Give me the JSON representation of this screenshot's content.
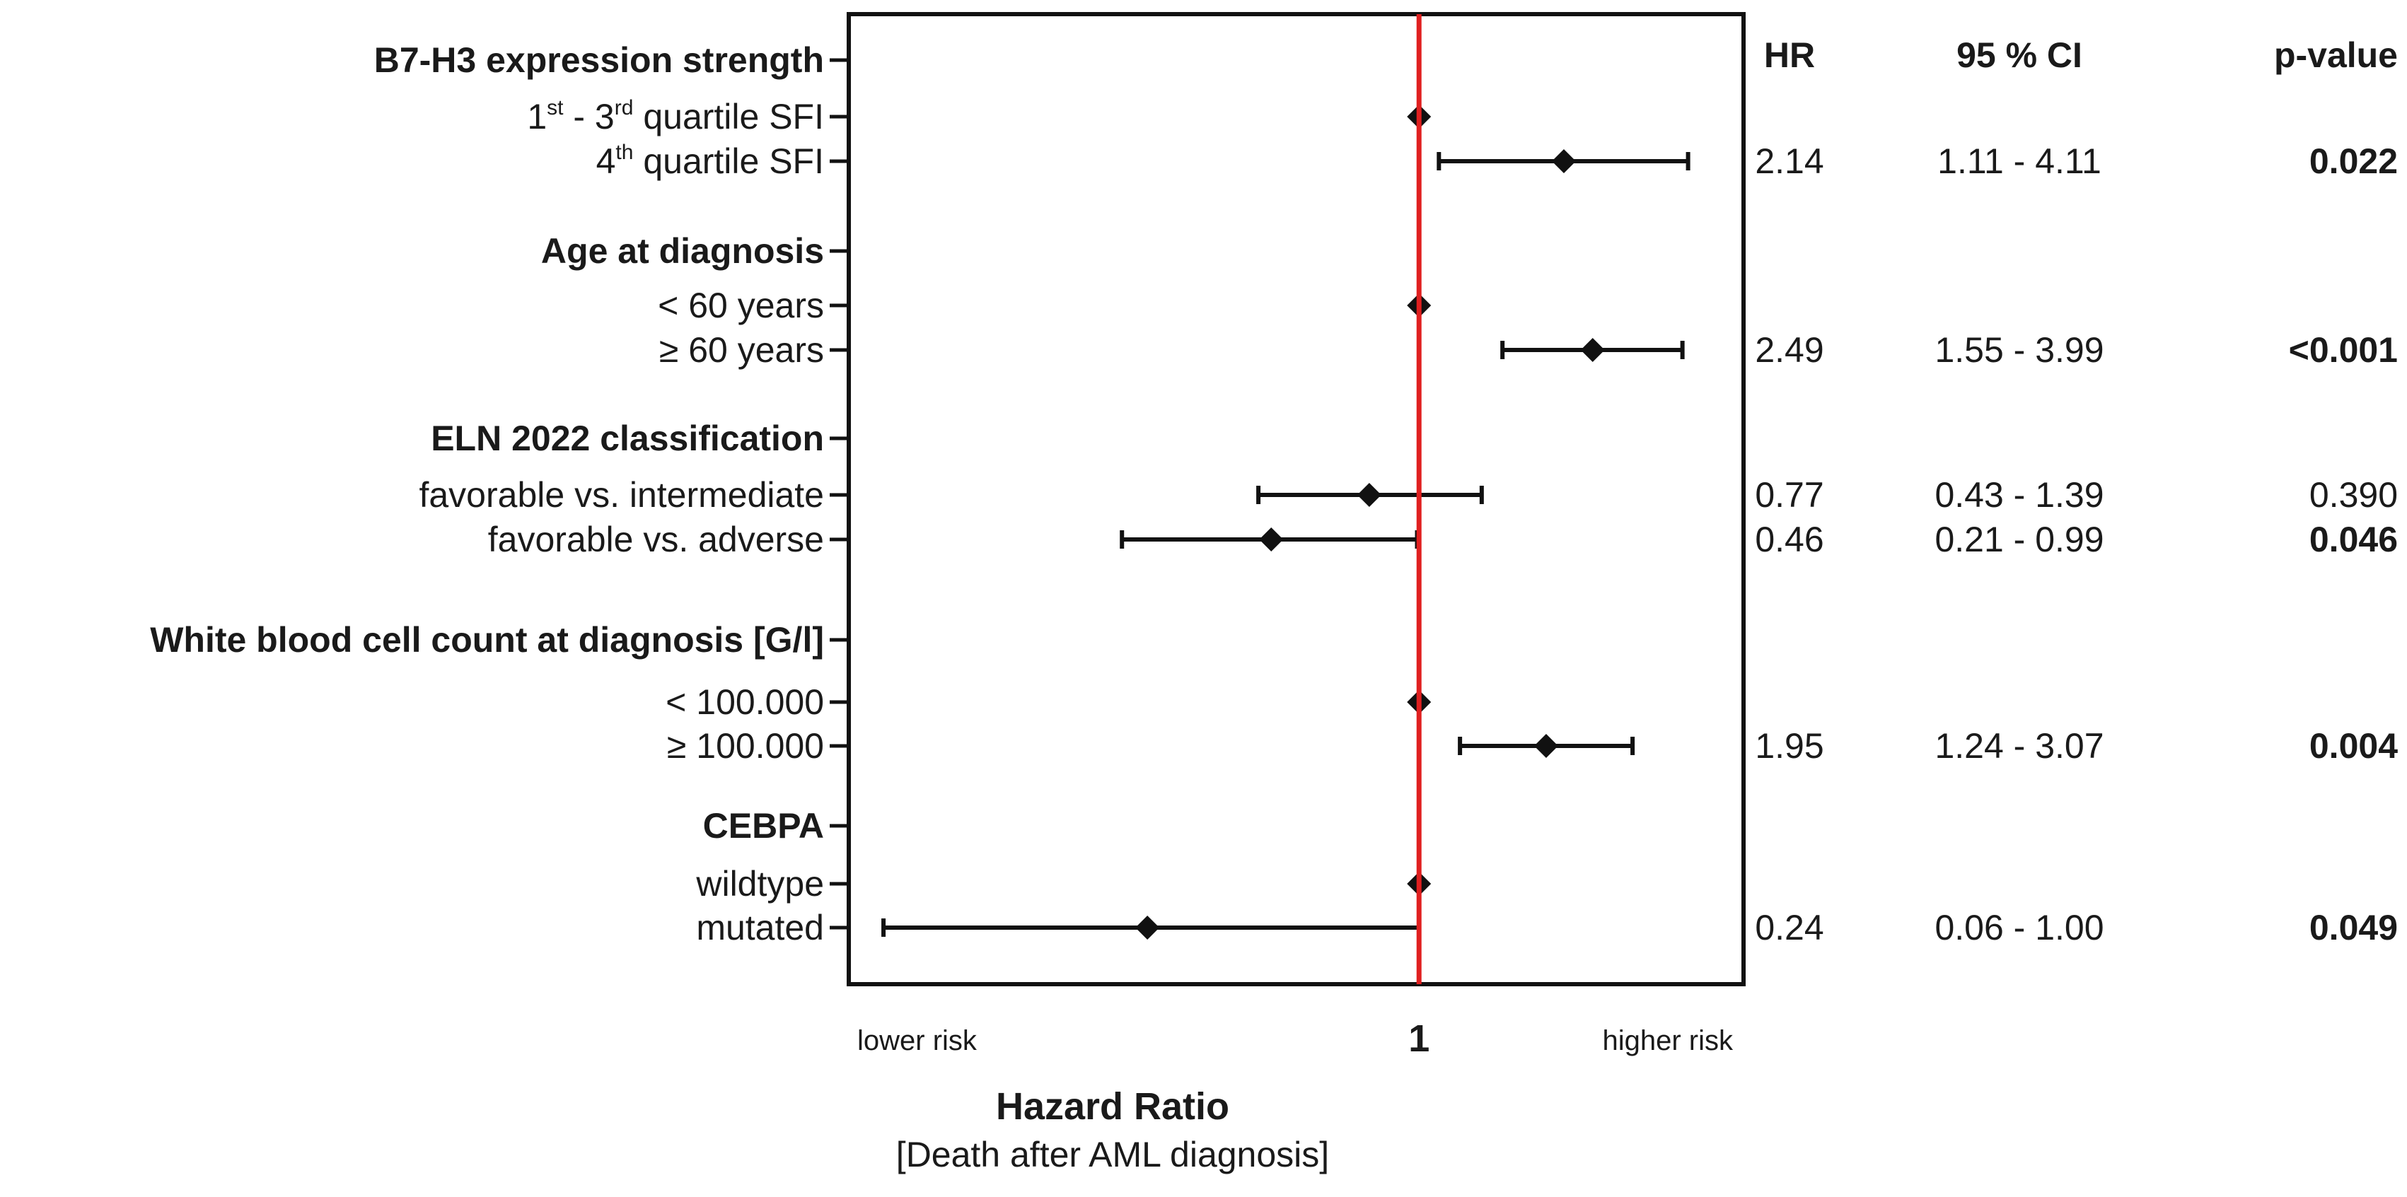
{
  "chart_data": {
    "type": "forest",
    "x_axis": {
      "reference_value": "1",
      "left_label": "lower risk",
      "right_label": "higher risk",
      "title": "Hazard Ratio",
      "subtitle": "[Death after AML diagnosis]",
      "scale": "log",
      "range": [
        0.05,
        5.5
      ]
    },
    "columns": {
      "hr": "HR",
      "ci": "95 % CI",
      "p": "p-value"
    },
    "groups": [
      {
        "title": "B7-H3 expression strength",
        "rows": [
          {
            "label": "1st - 3rd quartile SFI",
            "label_parts": {
              "n1": "1",
              "s1": "st",
              "mid": " - 3",
              "s2": "rd",
              "tail": " quartile SFI"
            },
            "reference": true
          },
          {
            "label": "4th quartile SFI",
            "label_parts": {
              "n1": "4",
              "s1": "th",
              "tail": " quartile SFI"
            },
            "hr": 2.14,
            "ci_low": 1.11,
            "ci_high": 4.11,
            "hr_text": "2.14",
            "ci_text": "1.11 - 4.11",
            "p_text": "0.022",
            "significant": true
          }
        ]
      },
      {
        "title": "Age at diagnosis",
        "rows": [
          {
            "label": "< 60 years",
            "reference": true
          },
          {
            "label": "≥ 60 years",
            "hr": 2.49,
            "ci_low": 1.55,
            "ci_high": 3.99,
            "hr_text": "2.49",
            "ci_text": "1.55 - 3.99",
            "p_text": "<0.001",
            "significant": true
          }
        ]
      },
      {
        "title": "ELN 2022 classification",
        "rows": [
          {
            "label": "favorable  vs. intermediate",
            "hr": 0.77,
            "ci_low": 0.43,
            "ci_high": 1.39,
            "hr_text": "0.77",
            "ci_text": "0.43 - 1.39",
            "p_text": "0.390",
            "significant": false
          },
          {
            "label": "favorable  vs. adverse",
            "hr": 0.46,
            "ci_low": 0.21,
            "ci_high": 0.99,
            "hr_text": "0.46",
            "ci_text": "0.21 - 0.99",
            "p_text": "0.046",
            "significant": true
          }
        ]
      },
      {
        "title": "White blood cell count at diagnosis [G/l]",
        "rows": [
          {
            "label": "< 100.000",
            "reference": true
          },
          {
            "label": "≥ 100.000",
            "hr": 1.95,
            "ci_low": 1.24,
            "ci_high": 3.07,
            "hr_text": "1.95",
            "ci_text": "1.24 - 3.07",
            "p_text": "0.004",
            "significant": true
          }
        ]
      },
      {
        "title": "CEBPA",
        "rows": [
          {
            "label": "wildtype",
            "reference": true
          },
          {
            "label": "mutated",
            "hr": 0.24,
            "ci_low": 0.06,
            "ci_high": 1.0,
            "hr_text": "0.24",
            "ci_text": "0.06 - 1.00",
            "p_text": "0.049",
            "significant": true
          }
        ]
      }
    ],
    "colors": {
      "reference_line": "#e01f1f",
      "marks": "#111111",
      "frame": "#111111"
    }
  }
}
